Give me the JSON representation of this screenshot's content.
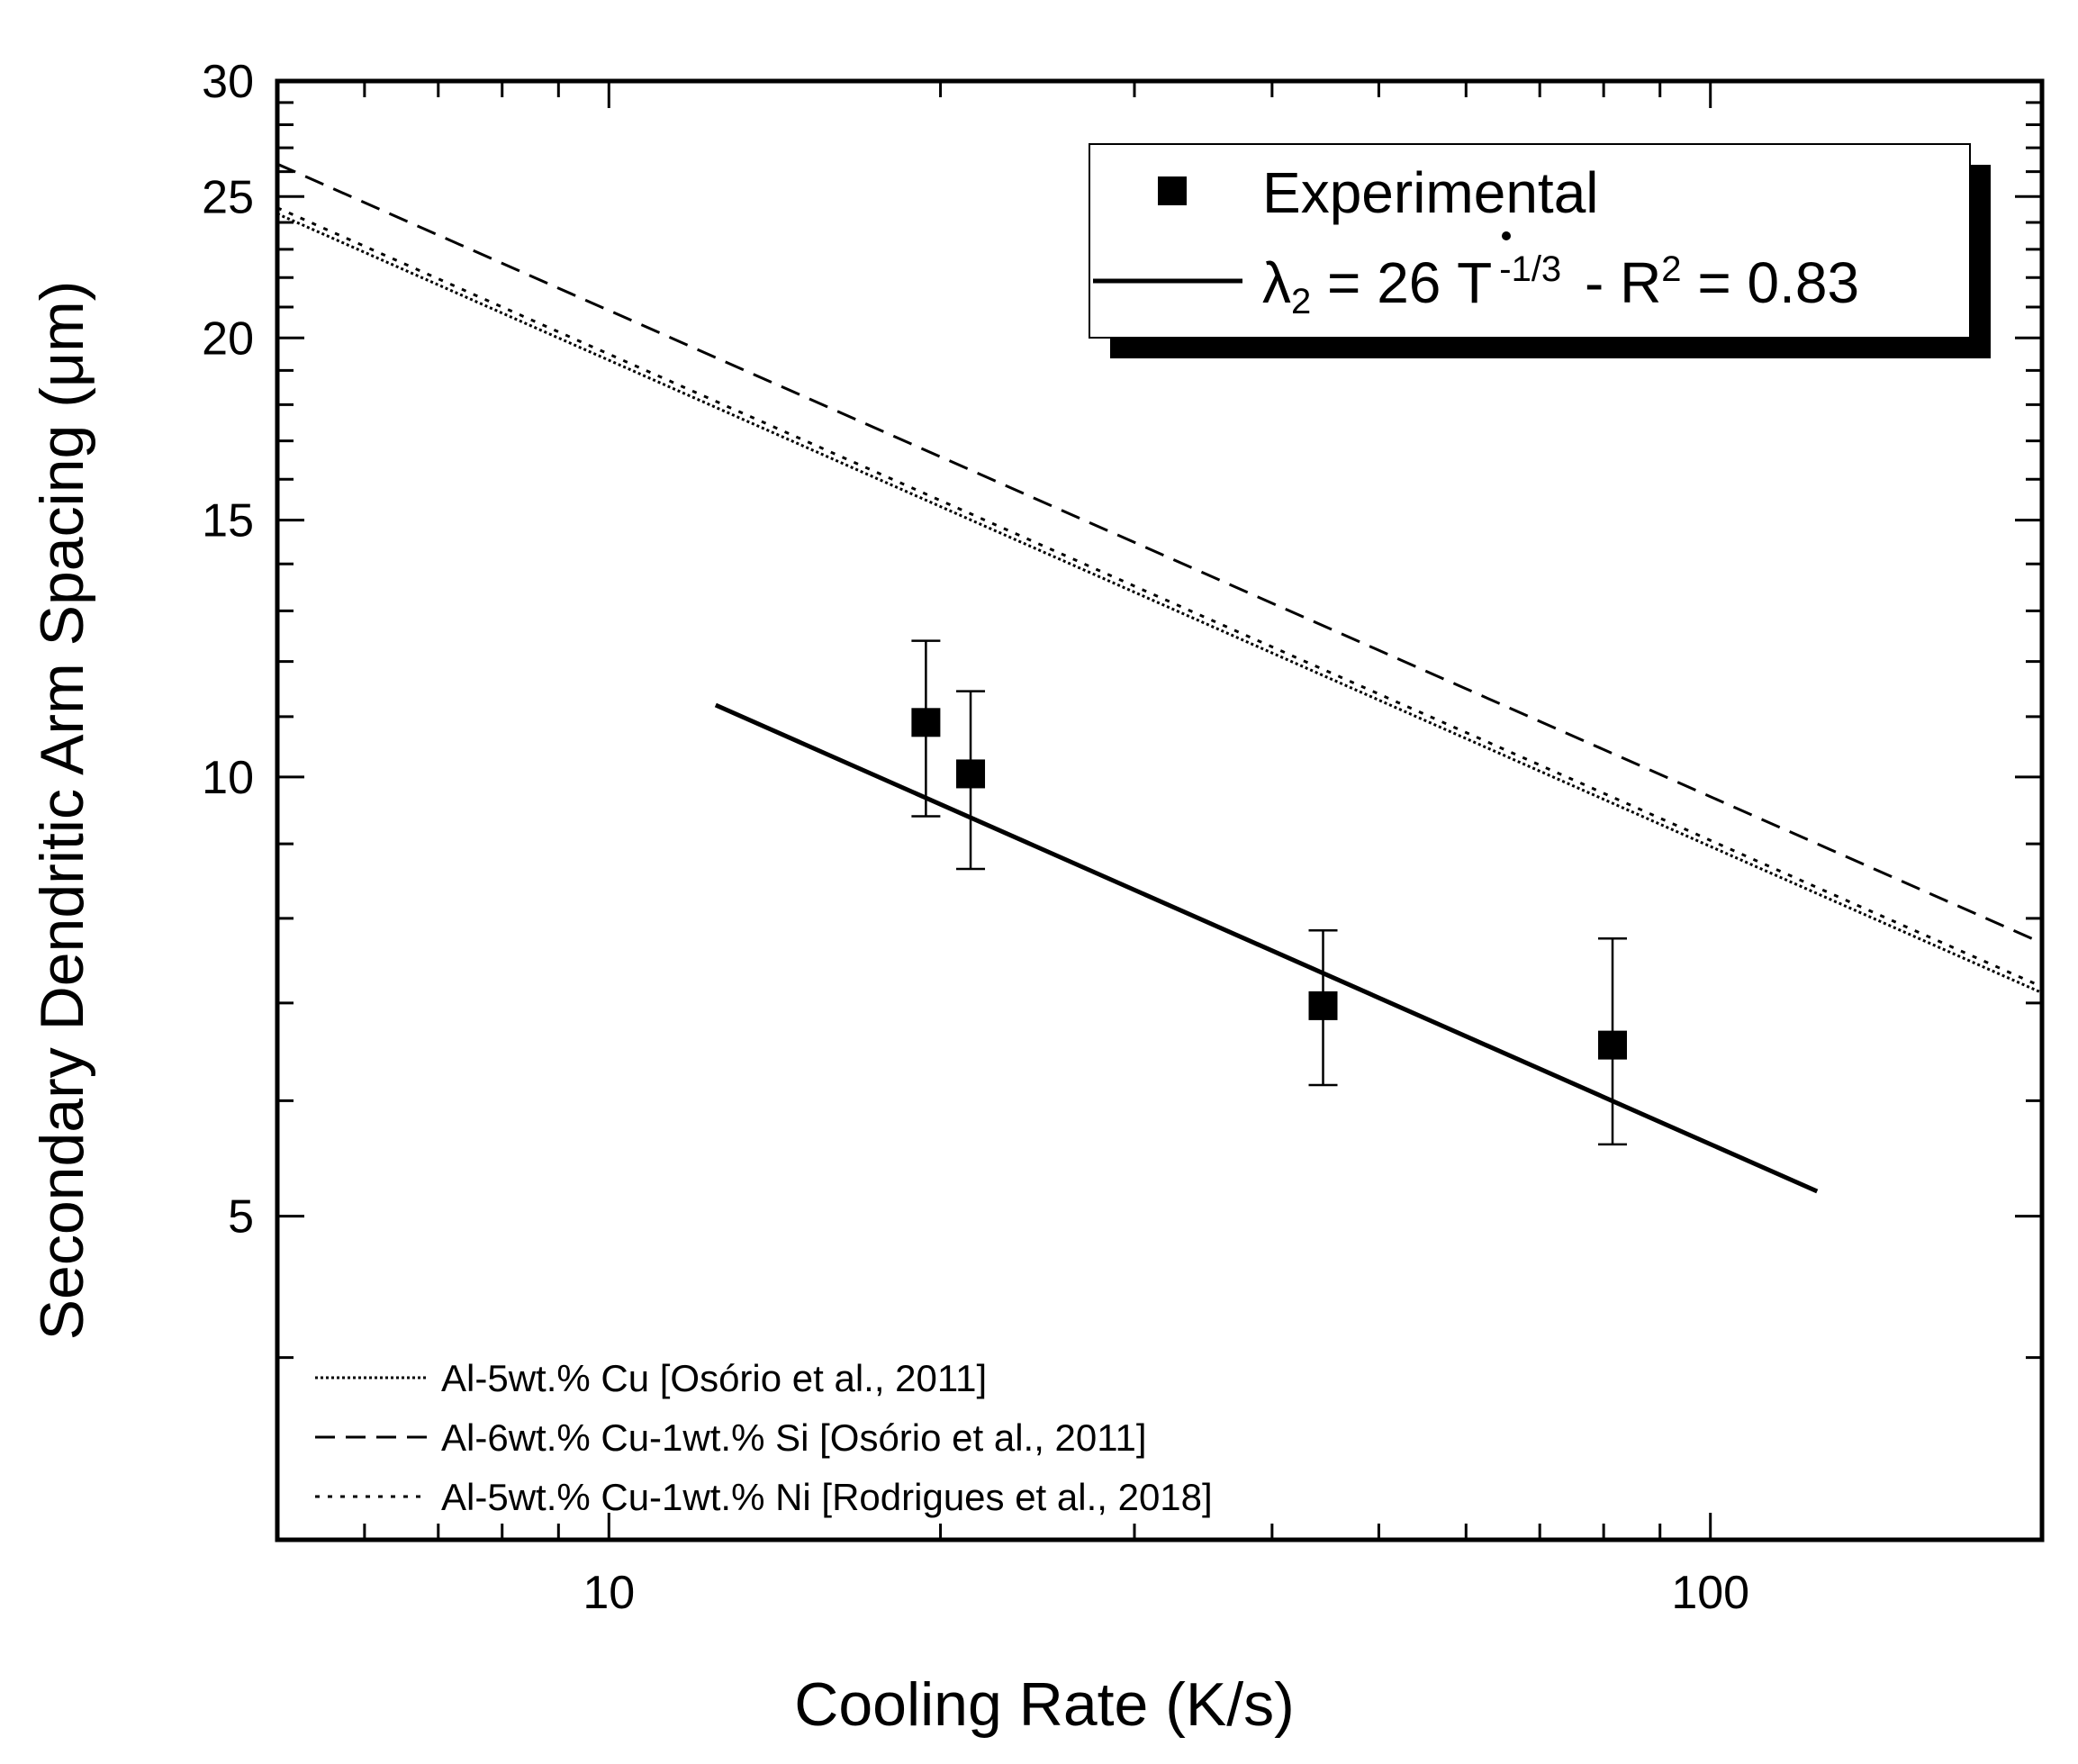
{
  "chart_data": {
    "type": "scatter",
    "title": "",
    "xlabel": "Cooling Rate (K/s)",
    "ylabel": "Secondary Dendritic Arm Spacing (μm)",
    "xscale": "log",
    "yscale": "log",
    "xlim": [
      5,
      200
    ],
    "ylim": [
      3,
      30
    ],
    "x_tick_labels": [
      {
        "value": 10,
        "label": "10"
      },
      {
        "value": 100,
        "label": "100"
      }
    ],
    "y_tick_labels": [
      {
        "value": 5,
        "label": "5"
      },
      {
        "value": 10,
        "label": "10"
      },
      {
        "value": 15,
        "label": "15"
      },
      {
        "value": 20,
        "label": "20"
      },
      {
        "value": 25,
        "label": "25"
      },
      {
        "value": 30,
        "label": "30"
      }
    ],
    "experimental": {
      "name": "Experimental",
      "points": [
        {
          "x": 19.4,
          "y": 10.9,
          "ylow": 9.4,
          "yhigh": 12.4
        },
        {
          "x": 21.3,
          "y": 10.05,
          "ylow": 8.65,
          "yhigh": 11.45
        },
        {
          "x": 44.5,
          "y": 6.97,
          "ylow": 6.15,
          "yhigh": 7.85
        },
        {
          "x": 81.5,
          "y": 6.55,
          "ylow": 5.6,
          "yhigh": 7.75
        }
      ]
    },
    "fit": {
      "coefficient": 26,
      "exponent": -0.3333333,
      "x_range": [
        12.5,
        125
      ],
      "legend": {
        "lambda": "λ",
        "lambda_sub": "2",
        "eq_part": " = 26 T",
        "eq_sup": "-1/3",
        "r_part": " - R",
        "r_sup": "2",
        "r_end": " = 0.83"
      }
    },
    "references": [
      {
        "name": "Al-5wt.% Cu [Osório et al., 2011]",
        "coefficient": 41.6,
        "exponent": -0.3333333,
        "style": "densedot"
      },
      {
        "name": "Al-6wt.% Cu-1wt.% Si [Osório et al., 2011]",
        "coefficient": 45,
        "exponent": -0.3333333,
        "style": "dash"
      },
      {
        "name": "Al-5wt.% Cu-1wt.% Ni [Rodrigues et al., 2018]",
        "coefficient": 42,
        "exponent": -0.3333333,
        "style": "dot"
      }
    ],
    "legend_position": "top-right",
    "grid": false
  },
  "colors": {
    "ink": "#000000",
    "background": "#ffffff"
  }
}
